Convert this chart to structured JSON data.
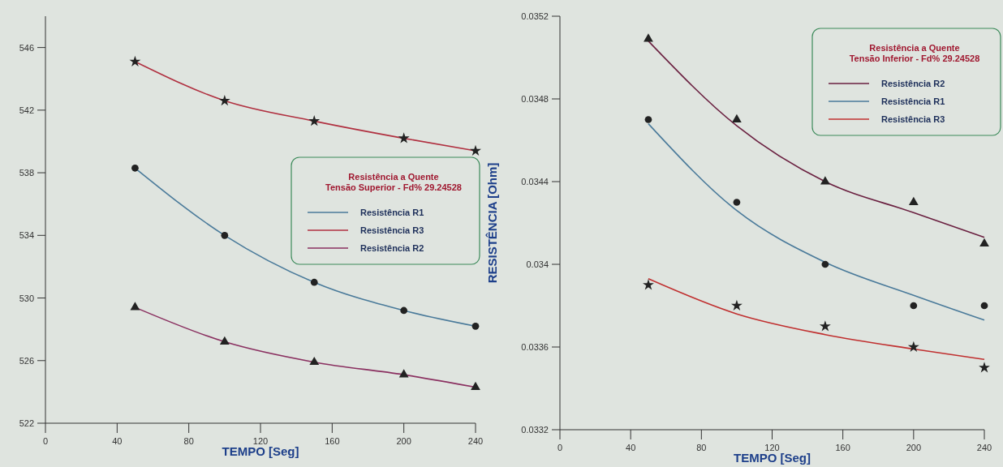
{
  "chart_data": [
    {
      "type": "line",
      "xlabel": "TEMPO [Seg]",
      "legend_title": "Resistência a Quente\nTensão Superior - Fd% 29.24528",
      "legend": "right",
      "x": [
        50,
        100,
        150,
        200,
        240
      ],
      "xlim": [
        0,
        240
      ],
      "xticks": [
        0,
        40,
        80,
        120,
        160,
        200,
        240
      ],
      "ylim": [
        522,
        548
      ],
      "yticks": [
        522,
        526,
        530,
        534,
        538,
        542,
        546
      ],
      "grid": false,
      "series": [
        {
          "name": "Resistência R1",
          "color": "#4a7a9a",
          "marker": "circle",
          "values": [
            538.3,
            534.0,
            531.0,
            529.2,
            528.2
          ]
        },
        {
          "name": "Resistência R3",
          "color": "#b03040",
          "marker": "star",
          "values": [
            545.1,
            542.6,
            541.3,
            540.2,
            539.4
          ]
        },
        {
          "name": "Resistência R2",
          "color": "#8a3060",
          "marker": "triangle",
          "values": [
            529.4,
            527.2,
            525.9,
            525.1,
            524.3
          ]
        }
      ]
    },
    {
      "type": "line",
      "xlabel": "TEMPO [Seg]",
      "ylabel": "RESISTÊNCIA [Ohm]",
      "legend_title": "Resistência a Quente\nTensão Inferior - Fd% 29.24528",
      "legend": "top right",
      "x": [
        50,
        100,
        150,
        200,
        240
      ],
      "xlim": [
        0,
        240
      ],
      "xticks": [
        0,
        40,
        80,
        120,
        160,
        200,
        240
      ],
      "ylim": [
        0.0332,
        0.0352
      ],
      "yticks": [
        0.0332,
        0.0336,
        0.034,
        0.0344,
        0.0348,
        0.0352
      ],
      "grid": false,
      "series": [
        {
          "name": "Resistência R2",
          "color": "#6a2040",
          "marker": "none",
          "values": [
            0.03508,
            0.03467,
            0.0344,
            0.03425,
            0.03413
          ]
        },
        {
          "name": "Resistência R1",
          "color": "#4a7a9a",
          "marker": "none",
          "values": [
            0.03468,
            0.03426,
            0.03401,
            0.03385,
            0.03373
          ]
        },
        {
          "name": "Resistência R3",
          "color": "#c03030",
          "marker": "none",
          "values": [
            0.03393,
            0.03376,
            0.03366,
            0.03359,
            0.03354
          ]
        },
        {
          "type": "scatter",
          "color": "#222222",
          "marker": "triangle",
          "values": [
            0.03509,
            0.0347,
            0.0344,
            0.0343,
            0.0341
          ]
        },
        {
          "type": "scatter",
          "color": "#222222",
          "marker": "circle",
          "values": [
            0.0347,
            0.0343,
            0.034,
            0.0338,
            0.0338
          ]
        },
        {
          "type": "scatter",
          "color": "#222222",
          "marker": "star",
          "values": [
            0.0339,
            0.0338,
            0.0337,
            0.0336,
            0.0335
          ]
        }
      ]
    }
  ]
}
